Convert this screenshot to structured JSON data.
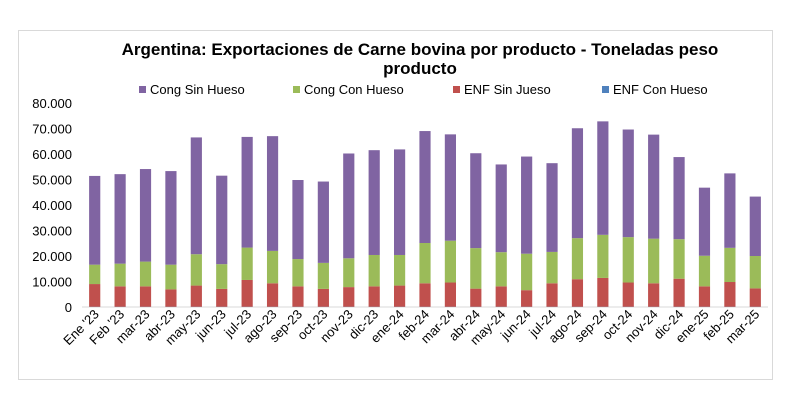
{
  "chart_data": {
    "type": "bar",
    "stacked": true,
    "title": "Argentina: Exportaciones de Carne bovina por producto - Toneladas peso producto",
    "title_lines": [
      "Argentina: Exportaciones de Carne bovina por producto - Toneladas peso",
      "producto"
    ],
    "ylim": [
      0,
      80000
    ],
    "yticks": [
      "0",
      "10.000",
      "20.000",
      "30.000",
      "40.000",
      "50.000",
      "60.000",
      "70.000",
      "80.000"
    ],
    "legend_position": "top",
    "grid": false,
    "categories": [
      "Ene '23",
      "Feb '23",
      "mar-23",
      "abr-23",
      "may-23",
      "jun-23",
      "jul-23",
      "ago-23",
      "sep-23",
      "oct-23",
      "nov-23",
      "dic-23",
      "ene-24",
      "feb-24",
      "mar-24",
      "abr-24",
      "may-24",
      "jun-24",
      "jul-24",
      "ago-24",
      "sep-24",
      "oct-24",
      "nov-24",
      "dic-24",
      "ene-25",
      "feb-25",
      "mar-25"
    ],
    "series": [
      {
        "name": "ENF Con Hueso",
        "color": "#4f81bd",
        "values": [
          100,
          100,
          100,
          100,
          100,
          100,
          100,
          100,
          100,
          100,
          100,
          100,
          100,
          100,
          100,
          100,
          100,
          100,
          100,
          100,
          100,
          100,
          100,
          100,
          100,
          100,
          100
        ]
      },
      {
        "name": "ENF Sin Jueso",
        "color": "#c0504d",
        "values": [
          8900,
          8000,
          8000,
          6800,
          8300,
          7000,
          10500,
          9200,
          8000,
          7000,
          7700,
          8000,
          8300,
          9200,
          9500,
          7100,
          8000,
          6500,
          9200,
          10800,
          11300,
          9500,
          9200,
          11000,
          8000,
          9700,
          7200
        ]
      },
      {
        "name": "Cong Con Hueso",
        "color": "#9bbb59",
        "values": [
          7600,
          8900,
          9700,
          9700,
          12300,
          9700,
          12700,
          12700,
          10700,
          10200,
          11300,
          12300,
          12000,
          15800,
          16400,
          15900,
          13400,
          14300,
          12300,
          16100,
          16900,
          17800,
          17500,
          15500,
          12000,
          13400,
          12700
        ]
      },
      {
        "name": "Cong Sin Hueso",
        "color": "#8064a2",
        "values": [
          34800,
          35100,
          36300,
          36700,
          45800,
          34700,
          43400,
          45000,
          31000,
          31900,
          41100,
          41100,
          41400,
          43900,
          41700,
          37200,
          34400,
          38100,
          34800,
          43100,
          44500,
          42200,
          40800,
          32200,
          26700,
          29200,
          23300
        ]
      }
    ],
    "legend_order": [
      "Cong Sin Hueso",
      "Cong Con Hueso",
      "ENF Sin Jueso",
      "ENF Con Hueso"
    ]
  }
}
